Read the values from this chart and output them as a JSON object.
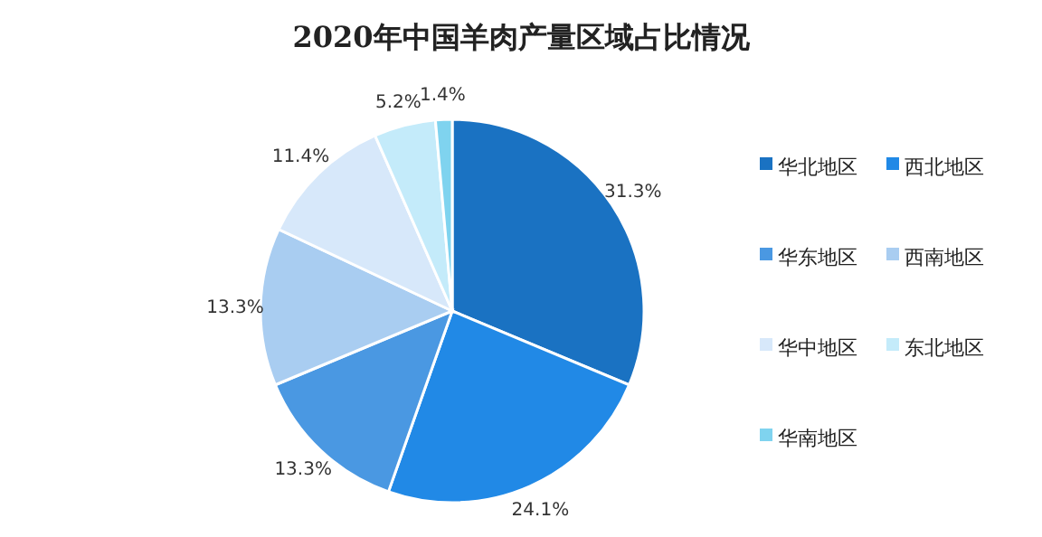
{
  "chart_data": {
    "type": "pie",
    "title": "2020年中国羊肉产量区域占比情况",
    "categories": [
      "华北地区",
      "西北地区",
      "华东地区",
      "西南地区",
      "华中地区",
      "东北地区",
      "华南地区"
    ],
    "values": [
      31.3,
      24.1,
      13.3,
      13.3,
      11.4,
      5.2,
      1.4
    ],
    "colors": [
      "#1a72c2",
      "#2189e6",
      "#4a98e2",
      "#a9cdf1",
      "#d7e8fa",
      "#c4ebfa",
      "#7fd3ef"
    ],
    "value_labels": [
      "31.3%",
      "24.1%",
      "13.3%",
      "13.3%",
      "11.4%",
      "5.2%",
      "1.4%"
    ],
    "legend": "right"
  }
}
